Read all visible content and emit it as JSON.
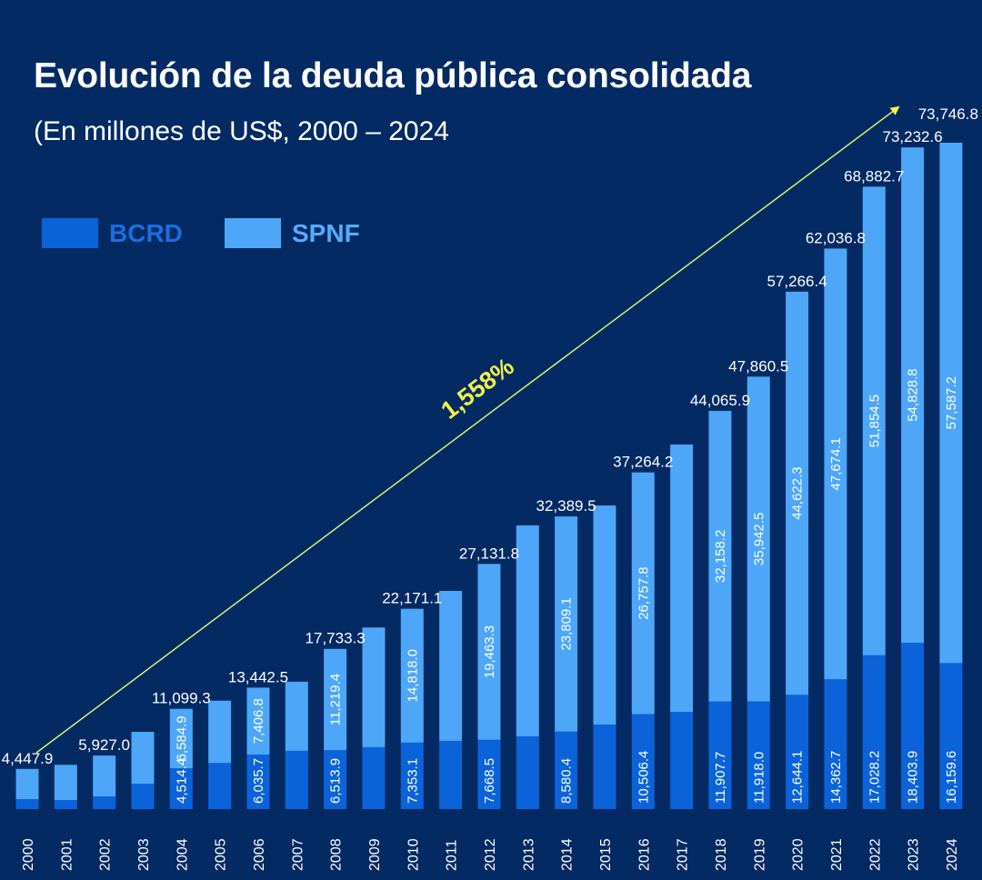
{
  "header": {
    "title": "Evolución de la deuda pública consolidada",
    "subtitle": "(En millones de US$, 2000 – 2024"
  },
  "colors": {
    "background": "#032a63",
    "bcrd": "#0b63d9",
    "spnf": "#4da6f7",
    "bcrd_legend_text": "#1a6fe0",
    "spnf_legend_text": "#56acf8",
    "arrow": "#d8ef73",
    "annotation": "#f2f24a",
    "label_text": "#ffffff"
  },
  "legend": [
    {
      "key": "bcrd",
      "label": "BCRD"
    },
    {
      "key": "spnf",
      "label": "SPNF"
    }
  ],
  "chart_data": {
    "type": "bar",
    "stacked": true,
    "title": "Evolución de la deuda pública consolidada",
    "subtitle": "(En millones de US$, 2000 – 2024",
    "xlabel": "",
    "ylabel": "",
    "ylim": [
      0,
      75000
    ],
    "grid": false,
    "legend_position": "top-left",
    "categories": [
      "2000",
      "2001",
      "2002",
      "2003",
      "2004",
      "2005",
      "2006",
      "2007",
      "2008",
      "2009",
      "2010",
      "2011",
      "2012",
      "2013",
      "2014",
      "2015",
      "2016",
      "2017",
      "2018",
      "2019",
      "2020",
      "2021",
      "2022",
      "2023",
      "2024"
    ],
    "series": [
      {
        "name": "BCRD",
        "values": [
          1100,
          1000,
          1400,
          2800,
          4514.4,
          5100,
          6035.7,
          6450,
          6513.9,
          6850,
          7353.1,
          7550,
          7668.5,
          8050,
          8580.4,
          9350,
          10506.4,
          10750,
          11907.7,
          11918.0,
          12644.1,
          14362.7,
          17028.2,
          18403.9,
          16159.6
        ],
        "labels": [
          "",
          "",
          "",
          "",
          "4,514.4",
          "",
          "6,035.7",
          "",
          "6,513.9",
          "",
          "7,353.1",
          "",
          "7,668.5",
          "",
          "8,580.4",
          "",
          "10,506.4",
          "",
          "11,907.7",
          "11,918.0",
          "12,644.1",
          "14,362.7",
          "17,028.2",
          "18,403.9",
          "16,159.6"
        ]
      },
      {
        "name": "SPNF",
        "values": [
          3347.9,
          3900,
          4527.0,
          5750,
          6584.9,
          6900,
          7406.8,
          7650,
          11219.4,
          13250,
          14818.0,
          16600,
          19463.3,
          23350,
          23809.1,
          24250,
          26757.8,
          29600,
          32158.2,
          35942.5,
          44622.3,
          47674.1,
          51854.5,
          54828.8,
          57587.2
        ],
        "labels": [
          "",
          "",
          "",
          "",
          "6,584.9",
          "",
          "7,406.8",
          "",
          "11,219.4",
          "",
          "14,818.0",
          "",
          "19,463.3",
          "",
          "23,809.1",
          "",
          "26,757.8",
          "",
          "32,158.2",
          "35,942.5",
          "44,622.3",
          "47,674.1",
          "51,854.5",
          "54,828.8",
          "57,587.2"
        ]
      }
    ],
    "totals": [
      4447.9,
      4900,
      5927.0,
      8550,
      11099.3,
      12000,
      13442.5,
      14100,
      17733.3,
      20100,
      22171.1,
      24150,
      27131.8,
      31400,
      32389.5,
      33600,
      37264.2,
      40350,
      44065.9,
      47860.5,
      57266.4,
      62036.8,
      68882.7,
      73232.6,
      73746.8
    ],
    "total_labels": [
      "4,447.9",
      "",
      "5,927.0",
      "",
      "11,099.3",
      "",
      "13,442.5",
      "",
      "17,733.3",
      "",
      "22,171.1",
      "",
      "27,131.8",
      "",
      "32,389.5",
      "",
      "37,264.2",
      "",
      "44,065.9",
      "47,860.5",
      "57,266.4",
      "62,036.8",
      "68,882.7",
      "73,232.6",
      "73,746.8"
    ],
    "annotations": [
      {
        "type": "arrow",
        "from_category": "2000",
        "to_category": "2024",
        "label": "1,558%"
      }
    ]
  }
}
